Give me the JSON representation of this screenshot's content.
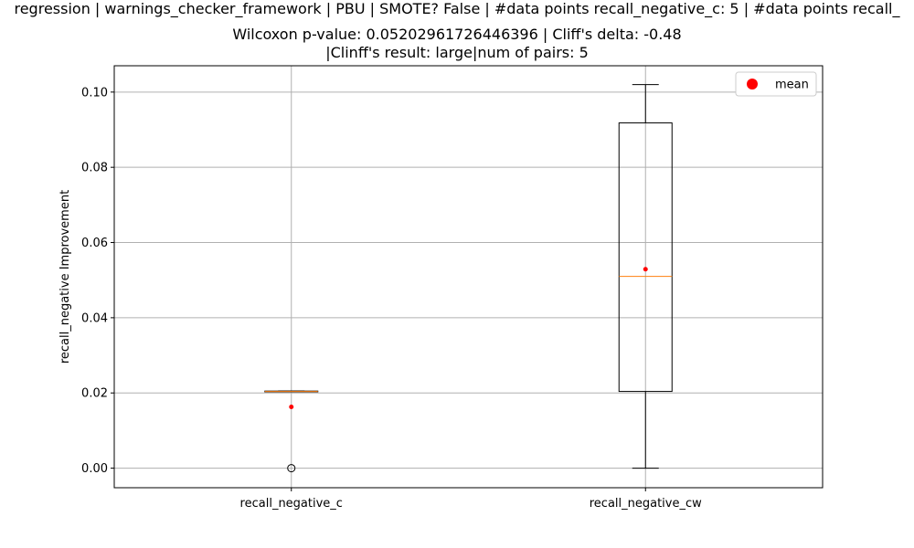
{
  "chart_data": {
    "type": "boxplot",
    "title_lines": [
      "regression | warnings_checker_framework | PBU | SMOTE? False | #data points recall_negative_c: 5 | #data points recall_",
      "Wilcoxon p-value: 0.05202961726446396 | Cliff's delta: -0.48",
      "|Clinff's result: large|num of pairs: 5"
    ],
    "xlabel": "",
    "ylabel": "recall_negative Improvement",
    "ylim": [
      -0.0052,
      0.107
    ],
    "yticks": [
      0.0,
      0.02,
      0.04,
      0.06,
      0.08,
      0.1
    ],
    "ytick_labels": [
      "0.00",
      "0.02",
      "0.04",
      "0.06",
      "0.08",
      "0.10"
    ],
    "grid": true,
    "legend": {
      "position": "top-right",
      "entries": [
        {
          "label": "mean",
          "color": "#ff0000",
          "marker": "circle"
        }
      ]
    },
    "categories": [
      "recall_negative_c",
      "recall_negative_cw"
    ],
    "boxes": [
      {
        "name": "recall_negative_c",
        "whislo": 0.0203,
        "q1": 0.0203,
        "median": 0.0204,
        "q3": 0.0205,
        "whishi": 0.0205,
        "mean": 0.0163,
        "fliers": [
          0.0
        ]
      },
      {
        "name": "recall_negative_cw",
        "whislo": 0.0,
        "q1": 0.0204,
        "median": 0.051,
        "q3": 0.0918,
        "whishi": 0.102,
        "mean": 0.0529,
        "fliers": []
      }
    ],
    "colors": {
      "box": "#000000",
      "median": "#ff7f0e",
      "mean": "#ff0000",
      "grid": "#b0b0b0"
    }
  }
}
